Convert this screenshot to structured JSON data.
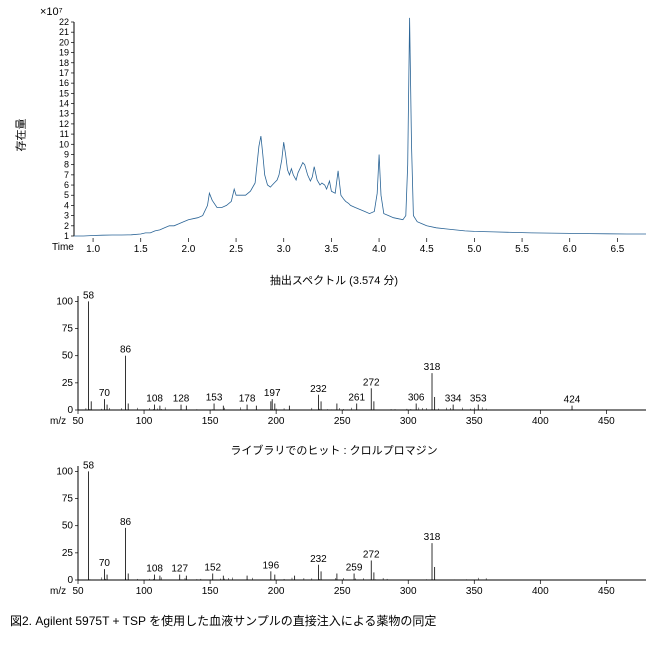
{
  "chromatogram": {
    "type": "line",
    "y_exp_label": "×10⁷",
    "ytitle": "存在量",
    "x_label": "Time",
    "xlim": [
      0.8,
      6.8
    ],
    "ylim": [
      1,
      22
    ],
    "xtick_step": 0.5,
    "ytick_step": 1,
    "yticks": [
      1,
      2,
      3,
      4,
      5,
      6,
      7,
      8,
      9,
      10,
      11,
      12,
      13,
      14,
      15,
      16,
      17,
      18,
      19,
      20,
      21,
      22
    ],
    "xticks": [
      1.0,
      1.5,
      2.0,
      2.5,
      3.0,
      3.5,
      4.0,
      4.5,
      5.0,
      5.5,
      6.0,
      6.5
    ],
    "line_color": "#2a6496",
    "line_width": 0.8,
    "background_color": "#ffffff",
    "axis_color": "#000000",
    "data": [
      [
        0.8,
        1.0
      ],
      [
        0.9,
        1.0
      ],
      [
        1.0,
        1.05
      ],
      [
        1.1,
        1.08
      ],
      [
        1.2,
        1.1
      ],
      [
        1.3,
        1.1
      ],
      [
        1.4,
        1.12
      ],
      [
        1.5,
        1.2
      ],
      [
        1.55,
        1.3
      ],
      [
        1.6,
        1.3
      ],
      [
        1.65,
        1.5
      ],
      [
        1.7,
        1.6
      ],
      [
        1.75,
        1.8
      ],
      [
        1.8,
        2.0
      ],
      [
        1.85,
        2.0
      ],
      [
        1.9,
        2.2
      ],
      [
        1.95,
        2.4
      ],
      [
        2.0,
        2.6
      ],
      [
        2.05,
        2.7
      ],
      [
        2.1,
        2.8
      ],
      [
        2.15,
        3.0
      ],
      [
        2.2,
        4.0
      ],
      [
        2.22,
        5.2
      ],
      [
        2.25,
        4.5
      ],
      [
        2.3,
        3.8
      ],
      [
        2.35,
        3.8
      ],
      [
        2.4,
        4.0
      ],
      [
        2.45,
        4.4
      ],
      [
        2.48,
        5.6
      ],
      [
        2.5,
        5.0
      ],
      [
        2.55,
        5.0
      ],
      [
        2.6,
        5.0
      ],
      [
        2.65,
        5.4
      ],
      [
        2.7,
        6.2
      ],
      [
        2.74,
        9.8
      ],
      [
        2.76,
        10.8
      ],
      [
        2.78,
        9.0
      ],
      [
        2.8,
        7.0
      ],
      [
        2.83,
        6.0
      ],
      [
        2.86,
        5.8
      ],
      [
        2.88,
        6.0
      ],
      [
        2.9,
        6.2
      ],
      [
        2.93,
        6.5
      ],
      [
        2.95,
        7.0
      ],
      [
        2.98,
        8.5
      ],
      [
        3.0,
        10.2
      ],
      [
        3.02,
        9.0
      ],
      [
        3.04,
        7.5
      ],
      [
        3.06,
        7.0
      ],
      [
        3.08,
        7.6
      ],
      [
        3.1,
        7.0
      ],
      [
        3.13,
        6.5
      ],
      [
        3.15,
        7.2
      ],
      [
        3.18,
        7.8
      ],
      [
        3.2,
        8.2
      ],
      [
        3.22,
        8.0
      ],
      [
        3.25,
        7.0
      ],
      [
        3.28,
        6.4
      ],
      [
        3.3,
        6.8
      ],
      [
        3.32,
        7.8
      ],
      [
        3.35,
        6.5
      ],
      [
        3.38,
        6.0
      ],
      [
        3.4,
        6.2
      ],
      [
        3.43,
        6.0
      ],
      [
        3.45,
        5.6
      ],
      [
        3.48,
        6.4
      ],
      [
        3.5,
        5.4
      ],
      [
        3.54,
        5.2
      ],
      [
        3.57,
        7.4
      ],
      [
        3.6,
        5.0
      ],
      [
        3.63,
        4.6
      ],
      [
        3.65,
        4.4
      ],
      [
        3.68,
        4.2
      ],
      [
        3.7,
        4.0
      ],
      [
        3.75,
        3.8
      ],
      [
        3.8,
        3.6
      ],
      [
        3.85,
        3.4
      ],
      [
        3.9,
        3.2
      ],
      [
        3.95,
        3.4
      ],
      [
        3.98,
        5.2
      ],
      [
        4.0,
        9.0
      ],
      [
        4.02,
        5.0
      ],
      [
        4.05,
        3.2
      ],
      [
        4.1,
        3.0
      ],
      [
        4.15,
        2.8
      ],
      [
        4.2,
        2.7
      ],
      [
        4.25,
        2.6
      ],
      [
        4.28,
        3.0
      ],
      [
        4.3,
        8.0
      ],
      [
        4.32,
        22.4
      ],
      [
        4.34,
        10.0
      ],
      [
        4.36,
        3.0
      ],
      [
        4.4,
        2.4
      ],
      [
        4.45,
        2.2
      ],
      [
        4.5,
        2.0
      ],
      [
        4.6,
        1.8
      ],
      [
        4.7,
        1.7
      ],
      [
        4.8,
        1.6
      ],
      [
        4.9,
        1.5
      ],
      [
        5.0,
        1.45
      ],
      [
        5.2,
        1.4
      ],
      [
        5.4,
        1.35
      ],
      [
        5.6,
        1.3
      ],
      [
        5.8,
        1.28
      ],
      [
        6.0,
        1.26
      ],
      [
        6.2,
        1.24
      ],
      [
        6.4,
        1.22
      ],
      [
        6.6,
        1.2
      ],
      [
        6.8,
        1.2
      ]
    ]
  },
  "ms1": {
    "type": "ms",
    "title": "抽出スペクトル (3.574 分)",
    "ylim": [
      0,
      105
    ],
    "xlim": [
      50,
      480
    ],
    "yticks": [
      0,
      25,
      50,
      75,
      100
    ],
    "xticks": [
      50,
      100,
      150,
      200,
      250,
      300,
      350,
      400,
      450
    ],
    "x_label_prefix": "m/z",
    "line_color": "#000000",
    "line_width": 0.8,
    "peaks": [
      {
        "mz": 58,
        "i": 100,
        "label": "58"
      },
      {
        "mz": 60,
        "i": 8
      },
      {
        "mz": 70,
        "i": 10,
        "label": "70"
      },
      {
        "mz": 72,
        "i": 5
      },
      {
        "mz": 86,
        "i": 50,
        "label": "86"
      },
      {
        "mz": 88,
        "i": 6
      },
      {
        "mz": 108,
        "i": 5,
        "label": "108"
      },
      {
        "mz": 112,
        "i": 4
      },
      {
        "mz": 128,
        "i": 5,
        "label": "128"
      },
      {
        "mz": 132,
        "i": 4
      },
      {
        "mz": 153,
        "i": 6,
        "label": "153"
      },
      {
        "mz": 160,
        "i": 4
      },
      {
        "mz": 178,
        "i": 5,
        "label": "178"
      },
      {
        "mz": 185,
        "i": 4
      },
      {
        "mz": 196,
        "i": 8
      },
      {
        "mz": 197,
        "i": 10,
        "label": "197"
      },
      {
        "mz": 199,
        "i": 6
      },
      {
        "mz": 210,
        "i": 4
      },
      {
        "mz": 232,
        "i": 14,
        "label": "232"
      },
      {
        "mz": 234,
        "i": 8
      },
      {
        "mz": 246,
        "i": 6
      },
      {
        "mz": 261,
        "i": 6,
        "label": "261"
      },
      {
        "mz": 272,
        "i": 20,
        "label": "272"
      },
      {
        "mz": 274,
        "i": 8
      },
      {
        "mz": 306,
        "i": 6,
        "label": "306"
      },
      {
        "mz": 318,
        "i": 34,
        "label": "318"
      },
      {
        "mz": 320,
        "i": 12
      },
      {
        "mz": 334,
        "i": 5,
        "label": "334"
      },
      {
        "mz": 353,
        "i": 5,
        "label": "353"
      },
      {
        "mz": 424,
        "i": 4,
        "label": "424"
      }
    ]
  },
  "ms2": {
    "type": "ms",
    "title": "ライブラリでのヒット : クロルプロマジン",
    "ylim": [
      0,
      105
    ],
    "xlim": [
      50,
      480
    ],
    "yticks": [
      0,
      25,
      50,
      75,
      100
    ],
    "xticks": [
      50,
      100,
      150,
      200,
      250,
      300,
      350,
      400,
      450
    ],
    "x_label_prefix": "m/z",
    "line_color": "#000000",
    "line_width": 0.8,
    "peaks": [
      {
        "mz": 58,
        "i": 100,
        "label": "58"
      },
      {
        "mz": 70,
        "i": 10,
        "label": "70"
      },
      {
        "mz": 72,
        "i": 5
      },
      {
        "mz": 86,
        "i": 48,
        "label": "86"
      },
      {
        "mz": 88,
        "i": 6
      },
      {
        "mz": 108,
        "i": 5,
        "label": "108"
      },
      {
        "mz": 112,
        "i": 4
      },
      {
        "mz": 127,
        "i": 5,
        "label": "127"
      },
      {
        "mz": 132,
        "i": 4
      },
      {
        "mz": 152,
        "i": 6,
        "label": "152"
      },
      {
        "mz": 160,
        "i": 4
      },
      {
        "mz": 178,
        "i": 4
      },
      {
        "mz": 196,
        "i": 8,
        "label": "196"
      },
      {
        "mz": 199,
        "i": 5
      },
      {
        "mz": 214,
        "i": 4
      },
      {
        "mz": 232,
        "i": 14,
        "label": "232"
      },
      {
        "mz": 234,
        "i": 8
      },
      {
        "mz": 246,
        "i": 6
      },
      {
        "mz": 259,
        "i": 6,
        "label": "259"
      },
      {
        "mz": 272,
        "i": 18,
        "label": "272"
      },
      {
        "mz": 274,
        "i": 7
      },
      {
        "mz": 318,
        "i": 34,
        "label": "318"
      },
      {
        "mz": 320,
        "i": 12
      }
    ]
  },
  "caption": "図2. Agilent 5975T + TSP を使用した血液サンプルの直接注入による薬物の同定"
}
